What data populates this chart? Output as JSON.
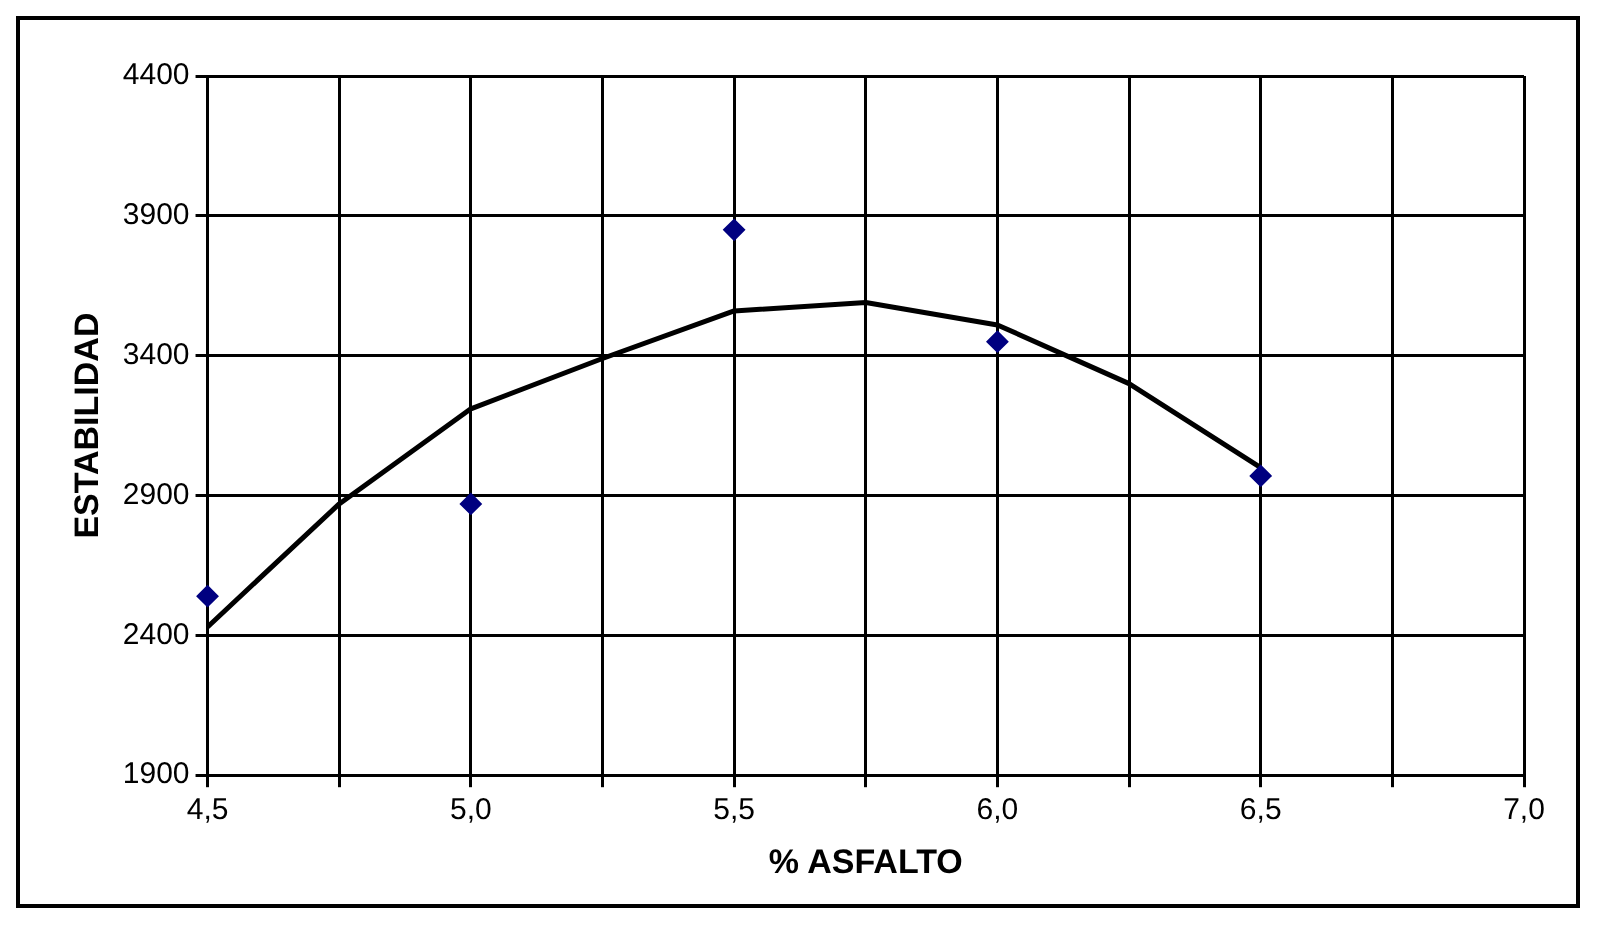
{
  "chart_data": {
    "type": "scatter",
    "xlabel": "% ASFALTO",
    "ylabel": "ESTABILIDAD",
    "series": [
      {
        "color": "#000080",
        "marker": "diamond",
        "x": [
          4.5,
          5.0,
          5.5,
          6.0,
          6.5
        ],
        "values": [
          2540,
          2870,
          3850,
          3450,
          2970
        ]
      },
      {
        "type": "line",
        "color": "#000000",
        "marker": "none",
        "line_style": "solid",
        "x": [
          4.5,
          4.75,
          5.0,
          5.25,
          5.5,
          5.75,
          6.0,
          6.25,
          6.5
        ],
        "values": [
          2430,
          2870,
          3210,
          3390,
          3560,
          3590,
          3510,
          3300,
          3000
        ]
      }
    ],
    "xlim": [
      4.5,
      7.0
    ],
    "xticks": [
      {
        "value": 4.5,
        "label": "4,5"
      },
      {
        "value": 4.75,
        "label": null
      },
      {
        "value": 5.0,
        "label": "5,0"
      },
      {
        "value": 5.25,
        "label": null
      },
      {
        "value": 5.5,
        "label": "5,5"
      },
      {
        "value": 5.75,
        "label": null
      },
      {
        "value": 6.0,
        "label": "6,0"
      },
      {
        "value": 6.25,
        "label": null
      },
      {
        "value": 6.5,
        "label": "6,5"
      },
      {
        "value": 6.75,
        "label": null
      },
      {
        "value": 7.0,
        "label": "7,0"
      }
    ],
    "ylim": [
      1900,
      4400
    ],
    "yticks": [
      1900,
      2400,
      2900,
      3400,
      3900,
      4400
    ],
    "grid": true,
    "legend": false
  }
}
